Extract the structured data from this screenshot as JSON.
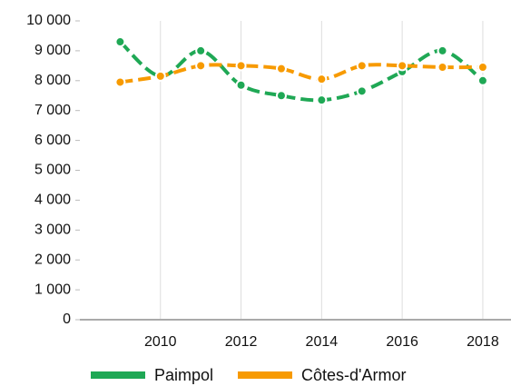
{
  "chart_data": {
    "type": "line",
    "x": [
      2009,
      2010,
      2011,
      2012,
      2013,
      2014,
      2015,
      2016,
      2017,
      2018
    ],
    "series": [
      {
        "name": "Paimpol",
        "color": "#1fa855",
        "values": [
          9300,
          8150,
          9000,
          7850,
          7500,
          7350,
          7650,
          8300,
          9000,
          8000
        ]
      },
      {
        "name": "Côtes-d'Armor",
        "color": "#f79a00",
        "values": [
          7950,
          8150,
          8500,
          8500,
          8400,
          8050,
          8500,
          8500,
          8450,
          8450
        ]
      }
    ],
    "xlim": [
      2008,
      2018.7
    ],
    "xticks": [
      2010,
      2012,
      2014,
      2016,
      2018
    ],
    "ylim": [
      0,
      10000
    ],
    "yticks": [
      0,
      {
        "value": 1000,
        "label": "1 000"
      },
      {
        "value": 2000,
        "label": "2 000"
      },
      {
        "value": 3000,
        "label": "3 000"
      },
      {
        "value": 4000,
        "label": "4 000"
      },
      {
        "value": 5000,
        "label": "5 000"
      },
      {
        "value": 6000,
        "label": "6 000"
      },
      {
        "value": 7000,
        "label": "7 000"
      },
      {
        "value": 8000,
        "label": "8 000"
      },
      {
        "value": 9000,
        "label": "9 000"
      },
      {
        "value": 10000,
        "label": "10 000"
      }
    ],
    "grid": true,
    "legend": "bottom"
  }
}
